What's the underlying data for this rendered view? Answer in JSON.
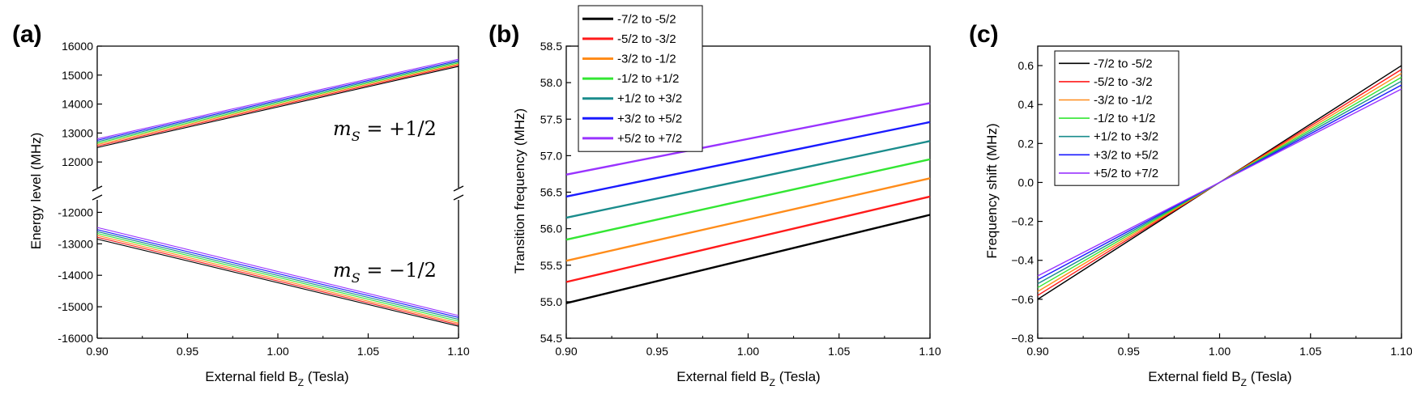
{
  "colors": {
    "series": [
      "#000000",
      "#ff1a1a",
      "#ff8c1a",
      "#33e633",
      "#1a8c8c",
      "#1a1aff",
      "#9933ff"
    ]
  },
  "chart_data": [
    {
      "panel": "(a)",
      "type": "line",
      "broken_axis": true,
      "xlabel": "External field B",
      "xlabel_sub": "Z",
      "xlabel_unit": " (Tesla)",
      "ylabel": "Energy level (MHz)",
      "xlim": [
        0.9,
        1.1
      ],
      "xticks": [
        "0.90",
        "0.95",
        "1.00",
        "1.05",
        "1.10"
      ],
      "upper_ylim": [
        11000,
        16000
      ],
      "upper_yticks": [
        "12000",
        "13000",
        "14000",
        "15000",
        "16000"
      ],
      "lower_ylim": [
        -16000,
        -11500
      ],
      "lower_yticks": [
        "-12000",
        "-13000",
        "-14000",
        "-15000",
        "-16000"
      ],
      "annotations": [
        {
          "text_main": "m",
          "text_sub": "S",
          "text_rest": " = +1/2"
        },
        {
          "text_main": "m",
          "text_sub": "S",
          "text_rest": " = −1/2"
        }
      ],
      "upper_series": [
        {
          "name": "-7/2 to -5/2",
          "x": [
            0.9,
            1.1
          ],
          "y": [
            12500,
            15300
          ]
        },
        {
          "name": "-5/2 to -3/2",
          "x": [
            0.9,
            1.1
          ],
          "y": [
            12550,
            15340
          ]
        },
        {
          "name": "-3/2 to -1/2",
          "x": [
            0.9,
            1.1
          ],
          "y": [
            12600,
            15380
          ]
        },
        {
          "name": "-1/2 to +1/2",
          "x": [
            0.9,
            1.1
          ],
          "y": [
            12650,
            15420
          ]
        },
        {
          "name": "+1/2 to +3/2",
          "x": [
            0.9,
            1.1
          ],
          "y": [
            12700,
            15460
          ]
        },
        {
          "name": "+3/2 to +5/2",
          "x": [
            0.9,
            1.1
          ],
          "y": [
            12750,
            15500
          ]
        },
        {
          "name": "+5/2 to +7/2",
          "x": [
            0.9,
            1.1
          ],
          "y": [
            12800,
            15550
          ]
        }
      ],
      "lower_series": [
        {
          "name": "-7/2 to -5/2",
          "x": [
            0.9,
            1.1
          ],
          "y": [
            -12850,
            -15620
          ]
        },
        {
          "name": "-5/2 to -3/2",
          "x": [
            0.9,
            1.1
          ],
          "y": [
            -12790,
            -15570
          ]
        },
        {
          "name": "-3/2 to -1/2",
          "x": [
            0.9,
            1.1
          ],
          "y": [
            -12730,
            -15520
          ]
        },
        {
          "name": "-1/2 to +1/2",
          "x": [
            0.9,
            1.1
          ],
          "y": [
            -12670,
            -15460
          ]
        },
        {
          "name": "+1/2 to +3/2",
          "x": [
            0.9,
            1.1
          ],
          "y": [
            -12610,
            -15400
          ]
        },
        {
          "name": "+3/2 to +5/2",
          "x": [
            0.9,
            1.1
          ],
          "y": [
            -12550,
            -15340
          ]
        },
        {
          "name": "+5/2 to +7/2",
          "x": [
            0.9,
            1.1
          ],
          "y": [
            -12480,
            -15280
          ]
        }
      ]
    },
    {
      "panel": "(b)",
      "type": "line",
      "xlabel": "External field B",
      "xlabel_sub": "Z",
      "xlabel_unit": " (Tesla)",
      "ylabel": "Transition frequency (MHz)",
      "xlim": [
        0.9,
        1.1
      ],
      "ylim": [
        54.5,
        58.5
      ],
      "xticks": [
        "0.90",
        "0.95",
        "1.00",
        "1.05",
        "1.10"
      ],
      "yticks": [
        "54.5",
        "55.0",
        "55.5",
        "56.0",
        "56.5",
        "57.0",
        "57.5",
        "58.0",
        "58.5"
      ],
      "legend_position": "top-left",
      "series": [
        {
          "name": "-7/2 to -5/2",
          "x": [
            0.9,
            1.1
          ],
          "y": [
            54.98,
            56.19
          ]
        },
        {
          "name": "-5/2 to -3/2",
          "x": [
            0.9,
            1.1
          ],
          "y": [
            55.27,
            56.44
          ]
        },
        {
          "name": "-3/2 to -1/2",
          "x": [
            0.9,
            1.1
          ],
          "y": [
            55.56,
            56.69
          ]
        },
        {
          "name": "-1/2 to +1/2",
          "x": [
            0.9,
            1.1
          ],
          "y": [
            55.85,
            56.95
          ]
        },
        {
          "name": "+1/2 to +3/2",
          "x": [
            0.9,
            1.1
          ],
          "y": [
            56.15,
            57.2
          ]
        },
        {
          "name": "+3/2 to +5/2",
          "x": [
            0.9,
            1.1
          ],
          "y": [
            56.44,
            57.46
          ]
        },
        {
          "name": "+5/2 to +7/2",
          "x": [
            0.9,
            1.1
          ],
          "y": [
            56.74,
            57.72
          ]
        }
      ]
    },
    {
      "panel": "(c)",
      "type": "line",
      "xlabel": "External field B",
      "xlabel_sub": "Z",
      "xlabel_unit": " (Tesla)",
      "ylabel": "Frequency shift (MHz)",
      "xlim": [
        0.9,
        1.1
      ],
      "ylim": [
        -0.8,
        0.7
      ],
      "xticks": [
        "0.90",
        "0.95",
        "1.00",
        "1.05",
        "1.10"
      ],
      "yticks": [
        "−0.8",
        "−0.6",
        "−0.4",
        "−0.2",
        "0.0",
        "0.2",
        "0.4",
        "0.6"
      ],
      "ytick_values": [
        -0.8,
        -0.6,
        -0.4,
        -0.2,
        0.0,
        0.2,
        0.4,
        0.6
      ],
      "legend_position": "top-left",
      "series": [
        {
          "name": "-7/2 to -5/2",
          "x": [
            0.9,
            1.1
          ],
          "y": [
            -0.6,
            0.6
          ]
        },
        {
          "name": "-5/2 to -3/2",
          "x": [
            0.9,
            1.1
          ],
          "y": [
            -0.58,
            0.58
          ]
        },
        {
          "name": "-3/2 to -1/2",
          "x": [
            0.9,
            1.1
          ],
          "y": [
            -0.56,
            0.56
          ]
        },
        {
          "name": "-1/2 to +1/2",
          "x": [
            0.9,
            1.1
          ],
          "y": [
            -0.54,
            0.54
          ]
        },
        {
          "name": "+1/2 to +3/2",
          "x": [
            0.9,
            1.1
          ],
          "y": [
            -0.52,
            0.52
          ]
        },
        {
          "name": "+3/2 to +5/2",
          "x": [
            0.9,
            1.1
          ],
          "y": [
            -0.5,
            0.5
          ]
        },
        {
          "name": "+5/2 to +7/2",
          "x": [
            0.9,
            1.1
          ],
          "y": [
            -0.48,
            0.48
          ]
        }
      ]
    }
  ]
}
